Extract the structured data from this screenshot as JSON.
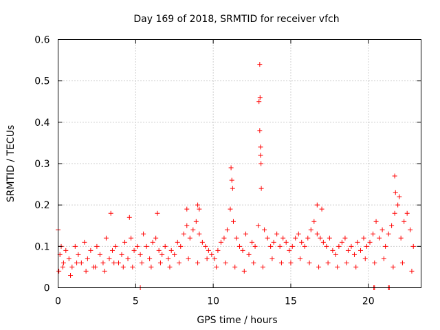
{
  "chart_data": {
    "type": "scatter",
    "title": "Day 169 of 2018, SRMTID for receiver vfch",
    "xlabel": "GPS time / hours",
    "ylabel": "SRMTID / TECUs",
    "xlim": [
      0,
      23.4
    ],
    "ylim": [
      0,
      0.6
    ],
    "xticks": [
      0,
      5,
      10,
      15,
      20
    ],
    "xtick_labels": [
      "0",
      "5",
      "10",
      "15",
      "20"
    ],
    "yticks": [
      0,
      0.1,
      0.2,
      0.3,
      0.4,
      0.5,
      0.6
    ],
    "ytick_labels": [
      "0",
      "0.1",
      "0.2",
      "0.3",
      "0.4",
      "0.5",
      "0.6"
    ],
    "grid": true,
    "marker": "+",
    "color": "#ff0000",
    "series": [
      {
        "name": "SRMTID",
        "x": [
          0.0,
          0.05,
          0.12,
          0.2,
          0.35,
          0.5,
          0.7,
          0.9,
          1.1,
          1.3,
          1.5,
          1.7,
          1.9,
          2.1,
          2.3,
          2.5,
          2.7,
          2.9,
          3.1,
          3.3,
          3.5,
          3.7,
          3.9,
          4.1,
          4.3,
          4.5,
          4.7,
          4.9,
          5.1,
          5.3,
          5.5,
          5.7,
          5.9,
          6.1,
          6.3,
          6.5,
          6.7,
          6.9,
          7.1,
          7.3,
          7.5,
          7.7,
          7.9,
          8.1,
          8.3,
          8.5,
          8.7,
          8.9,
          9.1,
          9.3,
          9.5,
          9.7,
          9.9,
          10.1,
          10.3,
          10.5,
          10.7,
          10.9,
          11.1,
          11.3,
          11.5,
          11.7,
          11.9,
          12.1,
          12.3,
          12.5,
          12.7,
          12.9,
          13.0,
          13.05,
          13.1,
          13.3,
          13.5,
          13.7,
          13.9,
          14.1,
          14.3,
          14.5,
          14.7,
          14.9,
          15.1,
          15.3,
          15.5,
          15.7,
          15.9,
          16.1,
          16.3,
          16.5,
          16.7,
          16.9,
          17.1,
          17.3,
          17.5,
          17.7,
          17.9,
          18.1,
          18.3,
          18.5,
          18.7,
          18.9,
          19.1,
          19.3,
          19.5,
          19.7,
          19.9,
          20.1,
          20.3,
          20.5,
          20.7,
          20.9,
          21.1,
          21.3,
          21.5,
          21.7,
          21.9,
          22.1,
          22.3,
          22.5,
          22.7,
          22.9,
          0.3,
          0.8,
          1.2,
          1.8,
          2.4,
          3.0,
          3.6,
          4.2,
          4.8,
          5.4,
          6.0,
          6.6,
          7.2,
          7.8,
          8.4,
          9.0,
          9.6,
          10.2,
          10.8,
          11.4,
          12.0,
          12.6,
          13.2,
          13.8,
          14.4,
          15.0,
          15.6,
          16.2,
          16.8,
          17.4,
          18.0,
          18.6,
          19.2,
          19.8,
          20.4,
          21.0,
          21.6,
          22.2,
          22.8,
          11.15,
          11.2,
          11.25,
          12.95,
          13.0,
          13.02,
          13.05,
          13.08,
          21.7,
          21.75,
          22.0,
          16.7,
          17.0,
          9.0,
          9.1,
          8.3,
          6.4,
          4.6,
          3.4,
          5.3,
          20.35,
          20.4,
          21.3,
          21.35
        ],
        "y": [
          0.14,
          0.04,
          0.08,
          0.1,
          0.06,
          0.09,
          0.07,
          0.05,
          0.1,
          0.08,
          0.06,
          0.11,
          0.07,
          0.09,
          0.05,
          0.1,
          0.08,
          0.06,
          0.12,
          0.07,
          0.09,
          0.1,
          0.06,
          0.08,
          0.11,
          0.07,
          0.12,
          0.09,
          0.1,
          0.08,
          0.13,
          0.1,
          0.07,
          0.11,
          0.12,
          0.09,
          0.08,
          0.1,
          0.07,
          0.09,
          0.08,
          0.11,
          0.1,
          0.13,
          0.15,
          0.12,
          0.14,
          0.16,
          0.13,
          0.11,
          0.1,
          0.09,
          0.08,
          0.07,
          0.09,
          0.11,
          0.12,
          0.14,
          0.19,
          0.16,
          0.12,
          0.1,
          0.09,
          0.13,
          0.08,
          0.11,
          0.1,
          0.15,
          0.38,
          0.34,
          0.24,
          0.14,
          0.12,
          0.1,
          0.11,
          0.13,
          0.1,
          0.12,
          0.11,
          0.09,
          0.1,
          0.12,
          0.13,
          0.11,
          0.1,
          0.12,
          0.14,
          0.16,
          0.13,
          0.12,
          0.11,
          0.1,
          0.12,
          0.09,
          0.08,
          0.1,
          0.11,
          0.12,
          0.09,
          0.1,
          0.08,
          0.11,
          0.09,
          0.12,
          0.1,
          0.11,
          0.13,
          0.16,
          0.12,
          0.14,
          0.1,
          0.13,
          0.15,
          0.18,
          0.2,
          0.12,
          0.16,
          0.18,
          0.14,
          0.1,
          0.05,
          0.03,
          0.06,
          0.04,
          0.05,
          0.04,
          0.06,
          0.05,
          0.05,
          0.06,
          0.05,
          0.06,
          0.05,
          0.06,
          0.07,
          0.06,
          0.07,
          0.05,
          0.06,
          0.05,
          0.04,
          0.06,
          0.05,
          0.07,
          0.06,
          0.06,
          0.07,
          0.06,
          0.05,
          0.06,
          0.05,
          0.06,
          0.05,
          0.07,
          0.06,
          0.07,
          0.05,
          0.06,
          0.04,
          0.29,
          0.26,
          0.24,
          0.45,
          0.54,
          0.46,
          0.32,
          0.3,
          0.27,
          0.23,
          0.22,
          0.2,
          0.19,
          0.2,
          0.19,
          0.19,
          0.18,
          0.17,
          0.18,
          0.0,
          0.0,
          0.0,
          0.0,
          0.0
        ]
      }
    ]
  }
}
